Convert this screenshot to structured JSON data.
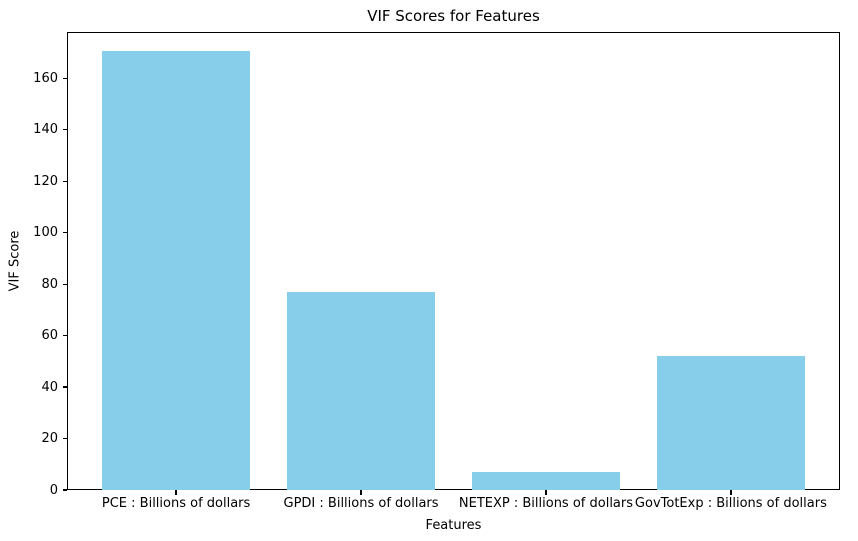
{
  "figure": {
    "title": "VIF Scores for Features"
  },
  "chart_data": {
    "type": "bar",
    "title": "VIF Scores for Features",
    "xlabel": "Features",
    "ylabel": "VIF Score",
    "categories": [
      "PCE : Billions of dollars",
      "GPDI : Billions of dollars",
      "NETEXP : Billions of dollars",
      "GovTotExp : Billions of dollars"
    ],
    "values": [
      170.5,
      77,
      7,
      52
    ],
    "yticks": [
      0,
      20,
      40,
      60,
      80,
      100,
      120,
      140,
      160
    ],
    "ylim": [
      0,
      178
    ],
    "xlim": [
      -0.59,
      3.59
    ],
    "bar_width": 0.8,
    "bar_color": "#87CEEB",
    "axis_color": "#000000",
    "grid": false
  }
}
